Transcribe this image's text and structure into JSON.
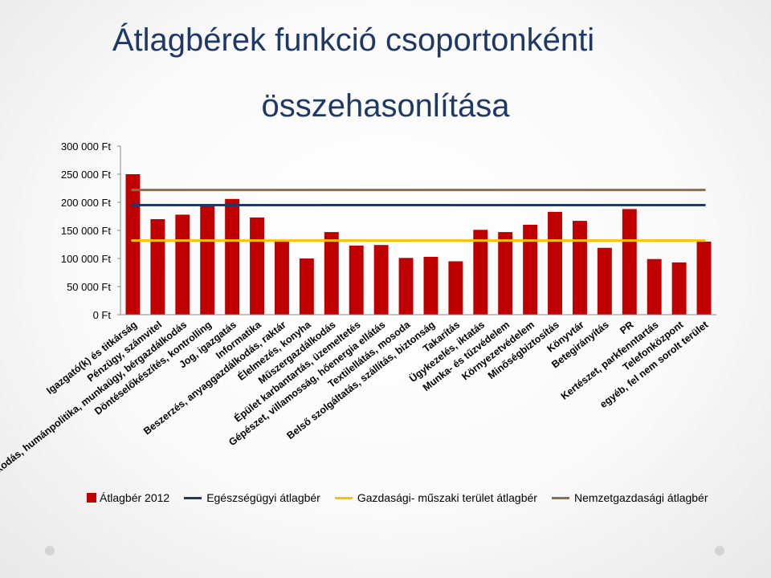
{
  "colors": {
    "bar": "#c00000",
    "health_avg": "#1f3864",
    "tech_avg": "#ffc000",
    "national_avg": "#8b6f47"
  },
  "chart_data": {
    "type": "bar",
    "title_line1": "Átlagbérek funkció csoportonkénti",
    "title_line2": "összehasonlítása",
    "ylim": [
      0,
      300000
    ],
    "yticks": [
      "0 Ft",
      "50 000 Ft",
      "100 000 Ft",
      "150 000 Ft",
      "200 000 Ft",
      "250 000 Ft",
      "300 000 Ft"
    ],
    "categories": [
      "Igazgató(k) és titkárság",
      "Pénzügy, számvitel",
      "Emberi erőforrás gazdálkodás, humánpolitika, munkaügy, bérgazdálkodás",
      "Döntéselőkészítés, kontrolling",
      "Jog, igazgatás",
      "Informatika",
      "Beszerzés, anyaggazdálkodás, raktár",
      "Élelmezés, konyha",
      "Műszergazdálkodás",
      "Épület karbantartás, üzemeltetés",
      "Gépészet, villamosság, hőenergia ellátás",
      "Textilellátás, mosoda",
      "Belső szolgáltatás, szállítás, biztonság",
      "Takarítás",
      "Ügykezelés, iktatás",
      "Munka- és tűzvédelem",
      "Környezetvédelem",
      "Minőségbiztosítás",
      "Könyvtár",
      "Betegirányítás",
      "PR",
      "Kertészet, parkfenntartás",
      "Telefonközpont",
      "egyéb, fel nem sorolt terület"
    ],
    "series": [
      {
        "name": "Átlagbér 2012",
        "type": "bar",
        "values": [
          250000,
          170000,
          178000,
          193000,
          206000,
          173000,
          130000,
          100000,
          147000,
          123000,
          124000,
          101000,
          103000,
          95000,
          151000,
          147000,
          160000,
          183000,
          167000,
          119000,
          188000,
          99000,
          93000,
          130000
        ]
      },
      {
        "name": "Egészségügyi átlagbér",
        "type": "line",
        "value": 195000
      },
      {
        "name": "Gazdasági- műszaki terület átlagbér",
        "type": "line",
        "value": 132000
      },
      {
        "name": "Nemzetgazdasági átlagbér",
        "type": "line",
        "value": 222000
      }
    ],
    "grid": false,
    "legend_position": "bottom"
  }
}
